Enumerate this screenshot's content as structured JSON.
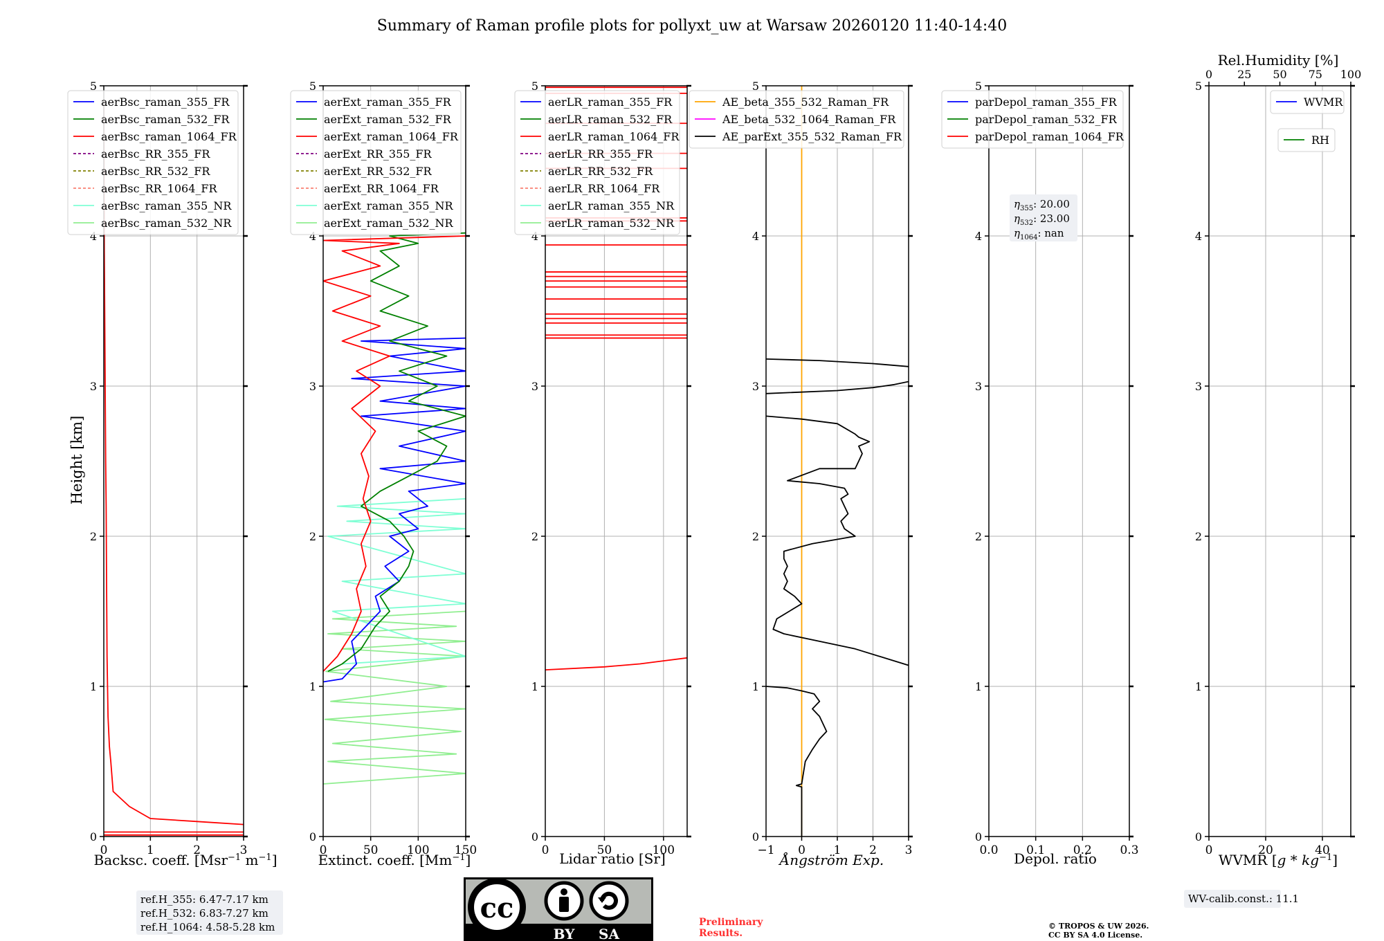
{
  "title": "Summary of Raman profile plots for pollyxt_uw at Warsaw 20260120 11:40-14:40",
  "shared_ylabel": "Height [km]",
  "colors": {
    "blue": "#0000ff",
    "green": "#008000",
    "red": "#ff0000",
    "purple": "#800080",
    "olive": "#808000",
    "salmon": "#fa8072",
    "cyan": "#7fffd4",
    "lightgreen": "#90ee90",
    "orange": "#ffa500",
    "magenta": "#ff00ff",
    "black": "#000000",
    "grid": "#b0b0b0"
  },
  "chart_data": [
    {
      "id": "bsc",
      "type": "line",
      "xlabel": "Backsc. coeff. [Msr$^{-1}$ m$^{-1}$]",
      "xlabel_main": "Backsc. coeff. [Msr",
      "xlabel_sup1": "−1",
      "xlabel_mid": " m",
      "xlabel_sup2": "−1",
      "xlabel_end": "]",
      "xlim": [
        0,
        3
      ],
      "ylim": [
        0,
        5
      ],
      "xticks": [
        "0",
        "1",
        "2",
        "3"
      ],
      "yticks": [
        "0",
        "1",
        "2",
        "3",
        "4",
        "5"
      ],
      "legend": [
        {
          "label": "aerBsc_raman_355_FR",
          "color": "blue",
          "dash": false
        },
        {
          "label": "aerBsc_raman_532_FR",
          "color": "green",
          "dash": false
        },
        {
          "label": "aerBsc_raman_1064_FR",
          "color": "red",
          "dash": false
        },
        {
          "label": "aerBsc_RR_355_FR",
          "color": "purple",
          "dash": true
        },
        {
          "label": "aerBsc_RR_532_FR",
          "color": "olive",
          "dash": true
        },
        {
          "label": "aerBsc_RR_1064_FR",
          "color": "salmon",
          "dash": true
        },
        {
          "label": "aerBsc_raman_355_NR",
          "color": "cyan",
          "dash": false
        },
        {
          "label": "aerBsc_raman_532_NR",
          "color": "lightgreen",
          "dash": false
        }
      ],
      "series": [
        {
          "name": "aerBsc_raman_1064_FR",
          "color": "red",
          "x": [
            3.0,
            2.0,
            1.0,
            0.55,
            0.2,
            0.15,
            0.12,
            0.09,
            0.07,
            0.06,
            0.05,
            0.04,
            0.03,
            0.02,
            0.01,
            0.0
          ],
          "y": [
            0.08,
            0.1,
            0.12,
            0.2,
            0.3,
            0.5,
            0.6,
            0.8,
            1.2,
            1.7,
            2.2,
            2.5,
            3.0,
            3.5,
            3.9,
            4.9
          ]
        }
      ]
    },
    {
      "id": "ext",
      "type": "line",
      "xlabel_main": "Extinct. coeff. [Mm",
      "xlabel_sup1": "−1",
      "xlabel_end": "]",
      "xlim": [
        0,
        150
      ],
      "ylim": [
        0,
        5
      ],
      "xticks": [
        "0",
        "50",
        "100",
        "150"
      ],
      "yticks": [
        "0",
        "1",
        "2",
        "3",
        "4",
        "5"
      ],
      "legend": [
        {
          "label": "aerExt_raman_355_FR",
          "color": "blue",
          "dash": false
        },
        {
          "label": "aerExt_raman_532_FR",
          "color": "green",
          "dash": false
        },
        {
          "label": "aerExt_raman_1064_FR",
          "color": "red",
          "dash": false
        },
        {
          "label": "aerExt_RR_355_FR",
          "color": "purple",
          "dash": true
        },
        {
          "label": "aerExt_RR_532_FR",
          "color": "olive",
          "dash": true
        },
        {
          "label": "aerExt_RR_1064_FR",
          "color": "salmon",
          "dash": true
        },
        {
          "label": "aerExt_raman_355_NR",
          "color": "cyan",
          "dash": false
        },
        {
          "label": "aerExt_raman_532_NR",
          "color": "lightgreen",
          "dash": false
        }
      ],
      "series": [
        {
          "name": "aerExt_raman_532_NR",
          "color": "lightgreen",
          "x": [
            0,
            150,
            5,
            140,
            10,
            145,
            2,
            150,
            8,
            130,
            3,
            150,
            20,
            150,
            5,
            140,
            10,
            150
          ],
          "y": [
            0.35,
            0.42,
            0.5,
            0.55,
            0.62,
            0.7,
            0.78,
            0.85,
            0.9,
            1.0,
            1.1,
            1.2,
            1.25,
            1.3,
            1.35,
            1.4,
            1.45,
            1.5
          ]
        },
        {
          "name": "aerExt_raman_355_NR",
          "color": "cyan",
          "x": [
            20,
            150,
            10,
            150,
            20,
            150,
            5,
            150,
            25,
            150,
            15,
            150
          ],
          "y": [
            1.15,
            1.2,
            1.5,
            1.55,
            1.7,
            1.75,
            2.0,
            2.05,
            2.1,
            2.15,
            2.2,
            2.25
          ]
        },
        {
          "name": "aerExt_raman_355_FR",
          "color": "blue",
          "x": [
            0,
            20,
            35,
            30,
            45,
            60,
            55,
            80,
            65,
            90,
            70,
            100,
            80,
            110,
            90,
            150,
            60,
            150,
            80,
            150,
            40,
            150,
            60,
            150,
            30,
            150,
            70,
            150,
            40,
            150
          ],
          "y": [
            1.03,
            1.05,
            1.15,
            1.3,
            1.4,
            1.5,
            1.6,
            1.7,
            1.8,
            1.9,
            2.0,
            2.05,
            2.15,
            2.2,
            2.3,
            2.35,
            2.45,
            2.5,
            2.6,
            2.7,
            2.8,
            2.85,
            2.9,
            3.0,
            3.05,
            3.1,
            3.2,
            3.25,
            3.3,
            3.32
          ]
        },
        {
          "name": "aerExt_raman_532_FR",
          "color": "green",
          "x": [
            5,
            20,
            40,
            55,
            70,
            60,
            80,
            90,
            95,
            85,
            70,
            40,
            60,
            90,
            120,
            130,
            100,
            150,
            90,
            120,
            80,
            130,
            70,
            110,
            60,
            90,
            50,
            80,
            60,
            100,
            70,
            150
          ],
          "y": [
            1.1,
            1.15,
            1.25,
            1.4,
            1.5,
            1.6,
            1.7,
            1.8,
            1.9,
            2.0,
            2.1,
            2.2,
            2.3,
            2.4,
            2.5,
            2.6,
            2.7,
            2.8,
            2.9,
            3.0,
            3.1,
            3.2,
            3.3,
            3.4,
            3.5,
            3.6,
            3.7,
            3.8,
            3.9,
            3.95,
            4.0,
            4.02
          ]
        },
        {
          "name": "aerExt_raman_1064_FR",
          "color": "red",
          "x": [
            0,
            15,
            30,
            40,
            35,
            45,
            40,
            50,
            42,
            48,
            40,
            55,
            30,
            60,
            35,
            70,
            20,
            60,
            10,
            50,
            0,
            60,
            20,
            80,
            0,
            150
          ],
          "y": [
            1.1,
            1.2,
            1.35,
            1.5,
            1.65,
            1.8,
            1.95,
            2.1,
            2.25,
            2.4,
            2.55,
            2.7,
            2.85,
            3.0,
            3.1,
            3.2,
            3.3,
            3.4,
            3.5,
            3.6,
            3.7,
            3.8,
            3.9,
            3.95,
            3.97,
            4.0
          ]
        }
      ]
    },
    {
      "id": "lr",
      "type": "line",
      "xlabel": "Lidar ratio [Sr]",
      "xlim": [
        0,
        120
      ],
      "ylim": [
        0,
        5
      ],
      "xticks": [
        "0",
        "50",
        "100"
      ],
      "yticks": [
        "0",
        "1",
        "2",
        "3",
        "4",
        "5"
      ],
      "legend": [
        {
          "label": "aerLR_raman_355_FR",
          "color": "blue",
          "dash": false
        },
        {
          "label": "aerLR_raman_532_FR",
          "color": "green",
          "dash": false
        },
        {
          "label": "aerLR_raman_1064_FR",
          "color": "red",
          "dash": false
        },
        {
          "label": "aerLR_RR_355_FR",
          "color": "purple",
          "dash": true
        },
        {
          "label": "aerLR_RR_532_FR",
          "color": "olive",
          "dash": true
        },
        {
          "label": "aerLR_RR_1064_FR",
          "color": "salmon",
          "dash": true
        },
        {
          "label": "aerLR_raman_355_NR",
          "color": "cyan",
          "dash": false
        },
        {
          "label": "aerLR_raman_532_NR",
          "color": "lightgreen",
          "dash": false
        }
      ],
      "series": [
        {
          "name": "aerLR_raman_1064_FR",
          "color": "red",
          "x": [
            0,
            50,
            80,
            100,
            120
          ],
          "y": [
            1.11,
            1.13,
            1.15,
            1.17,
            1.19
          ]
        }
      ],
      "hlines": {
        "color": "red",
        "y": [
          3.32,
          3.34,
          3.42,
          3.45,
          3.48,
          3.58,
          3.66,
          3.7,
          3.73,
          3.76,
          3.94,
          4.1,
          4.12,
          4.45,
          4.55,
          4.75,
          4.95,
          4.99
        ]
      }
    },
    {
      "id": "ae",
      "type": "line",
      "xlabel": "Ångström Exp.",
      "xlim": [
        -1,
        3
      ],
      "ylim": [
        0,
        5
      ],
      "xticks": [
        "−1",
        "0",
        "1",
        "2",
        "3"
      ],
      "yticks": [
        "0",
        "1",
        "2",
        "3",
        "4",
        "5"
      ],
      "legend": [
        {
          "label": "AE_beta_355_532_Raman_FR",
          "color": "orange",
          "dash": false
        },
        {
          "label": "AE_beta_532_1064_Raman_FR",
          "color": "magenta",
          "dash": false
        },
        {
          "label": "AE_parExt_355_532_Raman_FR",
          "color": "black",
          "dash": false
        }
      ],
      "vline": {
        "color": "orange",
        "x": 0
      },
      "series": [
        {
          "name": "AE_parExt_355_532_Raman_FR",
          "color": "black",
          "x": [
            0,
            0,
            -0.15,
            0,
            0.1,
            0.3,
            0.5,
            0.7,
            0.5,
            0.3,
            0.5,
            0.35,
            0,
            -0.4,
            -1
          ],
          "y": [
            0,
            0.33,
            0.34,
            0.35,
            0.5,
            0.58,
            0.65,
            0.7,
            0.8,
            0.85,
            0.9,
            0.95,
            0.97,
            0.99,
            1.0
          ]
        },
        {
          "name": "AE_parExt_355_532_Raman_FR_mid",
          "color": "black",
          "x": [
            3,
            1.5,
            0.5,
            -0.5,
            -0.8,
            -0.7,
            0,
            -0.2,
            -0.5,
            -0.4,
            -0.5,
            -0.4,
            -0.5,
            -0.5,
            0.3,
            1.5,
            1.2,
            1.1,
            1.3,
            1.2,
            1.1,
            1.3,
            1.2,
            0.5,
            -0.4,
            0.5,
            1.5,
            1.6,
            1.7,
            1.6,
            1.9,
            1.6,
            1.5,
            1.0,
            0,
            -1
          ],
          "y": [
            1.14,
            1.25,
            1.3,
            1.35,
            1.38,
            1.45,
            1.55,
            1.6,
            1.65,
            1.7,
            1.75,
            1.8,
            1.85,
            1.9,
            1.95,
            2.0,
            2.05,
            2.1,
            2.15,
            2.2,
            2.25,
            2.28,
            2.32,
            2.35,
            2.37,
            2.45,
            2.45,
            2.5,
            2.55,
            2.6,
            2.63,
            2.66,
            2.68,
            2.75,
            2.78,
            2.8
          ]
        },
        {
          "name": "AE_parExt_355_532_Raman_FR_top",
          "color": "black",
          "x": [
            -1,
            1.0,
            2.0,
            2.6,
            3.0
          ],
          "y": [
            2.95,
            2.97,
            2.99,
            3.01,
            3.03
          ]
        },
        {
          "name": "AE_parExt_355_532_Raman_FR_top2",
          "color": "black",
          "x": [
            -1,
            0.5,
            2.0,
            3.0
          ],
          "y": [
            3.18,
            3.17,
            3.15,
            3.13
          ]
        }
      ]
    },
    {
      "id": "depol",
      "type": "line",
      "xlabel": "Depol. ratio",
      "xlim": [
        0,
        0.3
      ],
      "ylim": [
        0,
        5
      ],
      "xticks": [
        "0.0",
        "0.1",
        "0.2",
        "0.3"
      ],
      "yticks": [
        "0",
        "1",
        "2",
        "3",
        "4",
        "5"
      ],
      "legend": [
        {
          "label": "parDepol_raman_355_FR",
          "color": "blue",
          "dash": false
        },
        {
          "label": "parDepol_raman_532_FR",
          "color": "green",
          "dash": false
        },
        {
          "label": "parDepol_raman_1064_FR",
          "color": "red",
          "dash": false
        }
      ],
      "eta_box": [
        {
          "sym": "η",
          "sub": "355",
          "value": ": 20.00"
        },
        {
          "sym": "η",
          "sub": "532",
          "value": ": 23.00"
        },
        {
          "sym": "η",
          "sub": "1064",
          "value": ": nan"
        }
      ],
      "series": []
    },
    {
      "id": "wvmr",
      "type": "line",
      "xlabel_main": "WVMR [",
      "xlabel_math": "g * kg",
      "xlabel_sup1": "−1",
      "xlabel_end": "]",
      "xlim": [
        0,
        50
      ],
      "ylim": [
        0,
        5
      ],
      "xticks": [
        "0",
        "20",
        "40"
      ],
      "yticks": [
        "0",
        "1",
        "2",
        "3",
        "4",
        "5"
      ],
      "top_axis_label": "Rel.Humidity [%]",
      "top_xlim": [
        0,
        100
      ],
      "top_xticks": [
        "0",
        "25",
        "50",
        "75",
        "100"
      ],
      "legend": [
        {
          "label": "WVMR",
          "color": "blue",
          "dash": false
        }
      ],
      "legend2": [
        {
          "label": "RH",
          "color": "green",
          "dash": false
        }
      ],
      "series": []
    }
  ],
  "annotations": {
    "ref_heights": [
      "ref.H_355: 6.47-7.17 km",
      "ref.H_532: 6.83-7.27 km",
      "ref.H_1064: 4.58-5.28 km"
    ],
    "preliminary": [
      "Preliminary",
      "Results."
    ],
    "copyright": [
      "© TROPOS & UW 2026.",
      "CC BY SA 4.0 License."
    ],
    "wv_calib": "WV-calib.const.: 11.1",
    "license_badge": {
      "cc": "cc",
      "by": "BY",
      "sa": "SA"
    }
  }
}
